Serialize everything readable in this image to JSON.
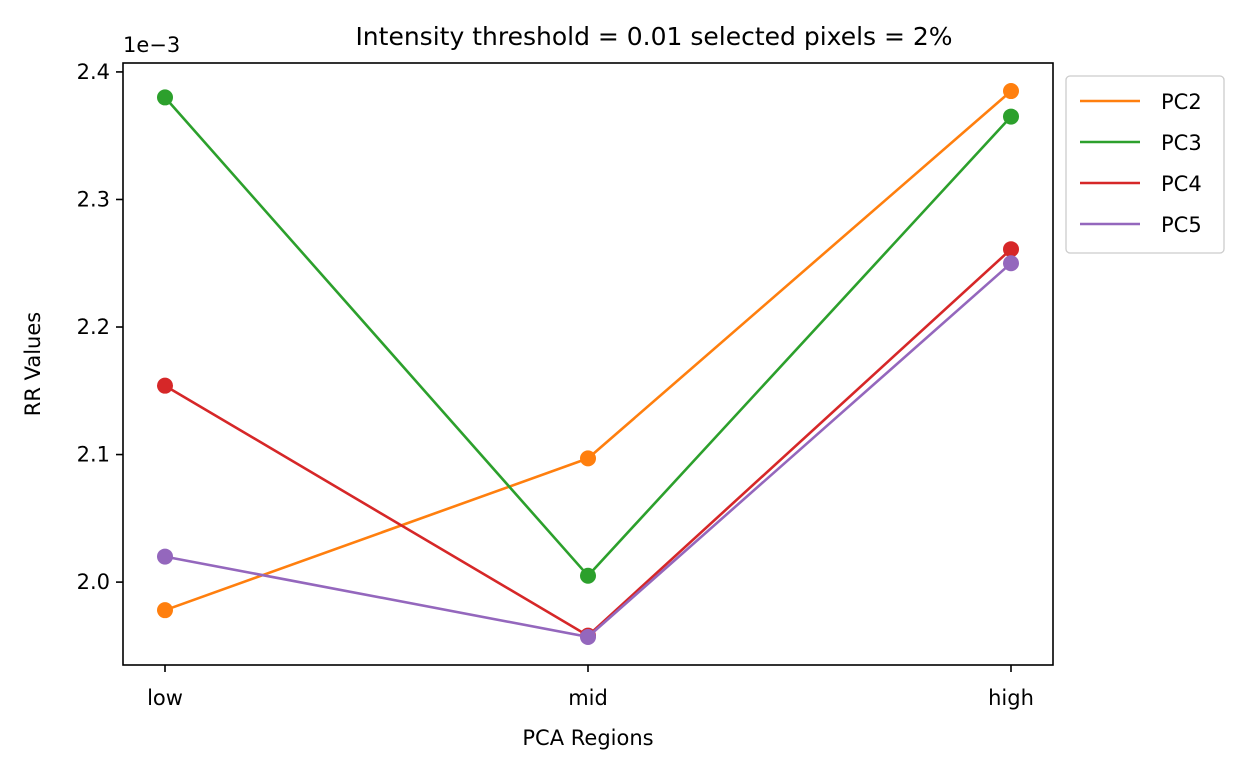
{
  "chart_data": {
    "type": "line",
    "title": "Intensity threshold = 0.01 selected pixels = 2%",
    "xlabel": "PCA Regions",
    "ylabel": "RR Values",
    "offset_label": "1e−3",
    "categories": [
      "low",
      "mid",
      "high"
    ],
    "ylim": [
      0.001935,
      0.002407
    ],
    "yticks": [
      0.002,
      0.0021,
      0.0022,
      0.0023,
      0.0024
    ],
    "ytick_labels": [
      "2.0",
      "2.1",
      "2.2",
      "2.3",
      "2.4"
    ],
    "grid": false,
    "legend_placement": "outside-top-right",
    "series": [
      {
        "name": "PC2",
        "color": "#ff7f0e",
        "values": [
          0.001978,
          0.002097,
          0.002385
        ]
      },
      {
        "name": "PC3",
        "color": "#2ca02c",
        "values": [
          0.00238,
          0.002005,
          0.002365
        ]
      },
      {
        "name": "PC4",
        "color": "#d62728",
        "values": [
          0.002154,
          0.001958,
          0.002261
        ]
      },
      {
        "name": "PC5",
        "color": "#9467bd",
        "values": [
          0.00202,
          0.001957,
          0.00225
        ]
      }
    ]
  }
}
